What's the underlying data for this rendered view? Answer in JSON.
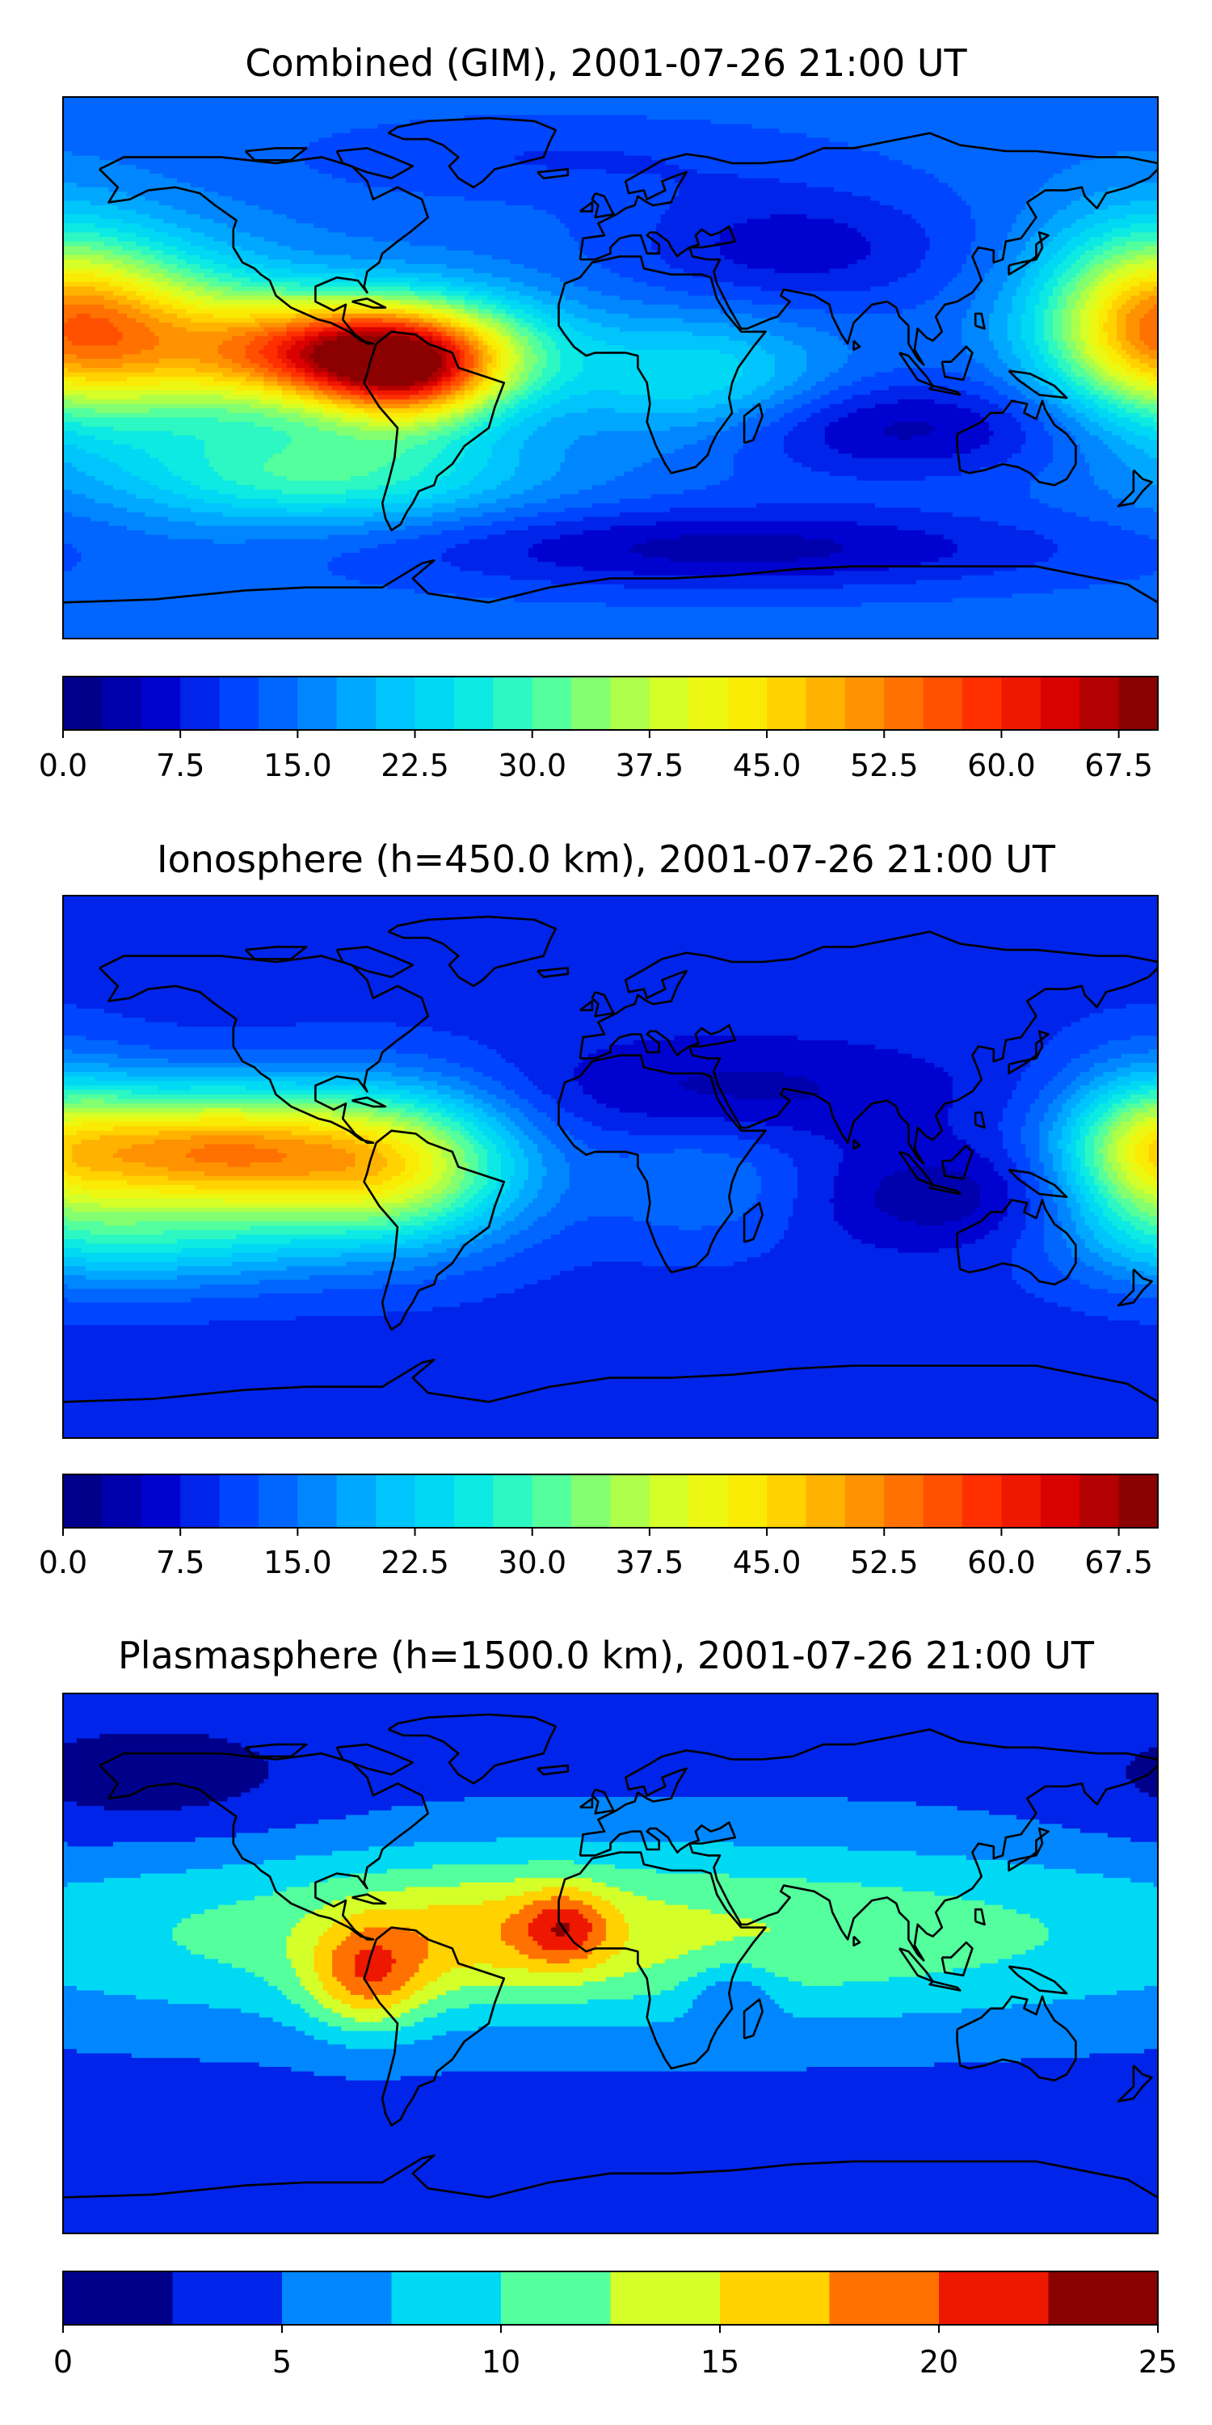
{
  "colormap": [
    "#00008b",
    "#0000cd",
    "#0040ff",
    "#0080ff",
    "#00c0ff",
    "#00e5ee",
    "#40ffb0",
    "#9aff5a",
    "#e5ff1a",
    "#ffe600",
    "#ffaa00",
    "#ff6a00",
    "#ff2a00",
    "#d80000",
    "#8b0000"
  ],
  "coastline_color": "#000000",
  "chart_data": [
    {
      "type": "heatmap",
      "title": "Combined (GIM), 2001-07-26 21:00 UT",
      "colorbar": {
        "min": 0,
        "max": 70,
        "levels": 28,
        "ticks": [
          0.0,
          7.5,
          15.0,
          22.5,
          30.0,
          37.5,
          45.0,
          52.5,
          60.0,
          67.5
        ],
        "tick_labels": [
          "0.0",
          "7.5",
          "15.0",
          "22.5",
          "30.0",
          "37.5",
          "45.0",
          "52.5",
          "60.0",
          "67.5"
        ]
      },
      "field": {
        "base": 14,
        "blobs": [
          {
            "lon": -80,
            "lat": 5,
            "amp": 52,
            "slon": 35,
            "slat": 13
          },
          {
            "lon": -65,
            "lat": -5,
            "amp": 18,
            "slon": 20,
            "slat": 12
          },
          {
            "lon": -150,
            "lat": 10,
            "amp": 22,
            "slon": 30,
            "slat": 20
          },
          {
            "lon": -95,
            "lat": -35,
            "amp": 16,
            "slon": 45,
            "slat": 12
          },
          {
            "lon": 175,
            "lat": 15,
            "amp": 28,
            "slon": 25,
            "slat": 22
          },
          {
            "lon": 30,
            "lat": -5,
            "amp": 12,
            "slon": 30,
            "slat": 15
          },
          {
            "lon": 60,
            "lat": 40,
            "amp": -8,
            "slon": 40,
            "slat": 15
          },
          {
            "lon": 90,
            "lat": -20,
            "amp": -10,
            "slon": 50,
            "slat": 12
          },
          {
            "lon": 40,
            "lat": -60,
            "amp": -10,
            "slon": 80,
            "slat": 10
          },
          {
            "lon": -20,
            "lat": 70,
            "amp": -4,
            "slon": 60,
            "slat": 10
          }
        ]
      }
    },
    {
      "type": "heatmap",
      "title": "Ionosphere  (h=450.0 km), 2001-07-26 21:00 UT",
      "colorbar": {
        "min": 0,
        "max": 70,
        "levels": 28,
        "ticks": [
          0.0,
          7.5,
          15.0,
          22.5,
          30.0,
          37.5,
          45.0,
          52.5,
          60.0,
          67.5
        ],
        "tick_labels": [
          "0.0",
          "7.5",
          "15.0",
          "22.5",
          "30.0",
          "37.5",
          "45.0",
          "52.5",
          "60.0",
          "67.5"
        ]
      },
      "field": {
        "base": 9,
        "blobs": [
          {
            "lon": -135,
            "lat": 5,
            "amp": 40,
            "slon": 38,
            "slat": 15
          },
          {
            "lon": -70,
            "lat": 0,
            "amp": 28,
            "slon": 30,
            "slat": 18
          },
          {
            "lon": -150,
            "lat": -25,
            "amp": 12,
            "slon": 40,
            "slat": 12
          },
          {
            "lon": 175,
            "lat": 5,
            "amp": 18,
            "slon": 20,
            "slat": 20
          },
          {
            "lon": 30,
            "lat": -5,
            "amp": 6,
            "slon": 25,
            "slat": 15
          },
          {
            "lon": 40,
            "lat": 25,
            "amp": -5,
            "slon": 50,
            "slat": 12
          },
          {
            "lon": 110,
            "lat": -10,
            "amp": -6,
            "slon": 30,
            "slat": 12
          }
        ]
      }
    },
    {
      "type": "heatmap",
      "title": "Plasmasphere (h=1500.0 km), 2001-07-26 21:00 UT",
      "colorbar": {
        "min": 0,
        "max": 25,
        "levels": 10,
        "ticks": [
          0,
          5,
          10,
          15,
          20,
          25
        ],
        "tick_labels": [
          "0",
          "5",
          "10",
          "15",
          "20",
          "25"
        ]
      },
      "field": {
        "base": 4,
        "blobs": [
          {
            "lon": 0,
            "lat": 10,
            "amp": 9,
            "slon": 160,
            "slat": 22
          },
          {
            "lon": -80,
            "lat": -5,
            "amp": 9,
            "slon": 14,
            "slat": 13
          },
          {
            "lon": -15,
            "lat": 12,
            "amp": 7,
            "slon": 10,
            "slat": 9
          },
          {
            "lon": -40,
            "lat": 10,
            "amp": 4,
            "slon": 30,
            "slat": 14
          },
          {
            "lon": 40,
            "lat": -10,
            "amp": -4,
            "slon": 10,
            "slat": 8
          },
          {
            "lon": -150,
            "lat": 60,
            "amp": -3,
            "slon": 40,
            "slat": 15
          }
        ]
      }
    }
  ]
}
